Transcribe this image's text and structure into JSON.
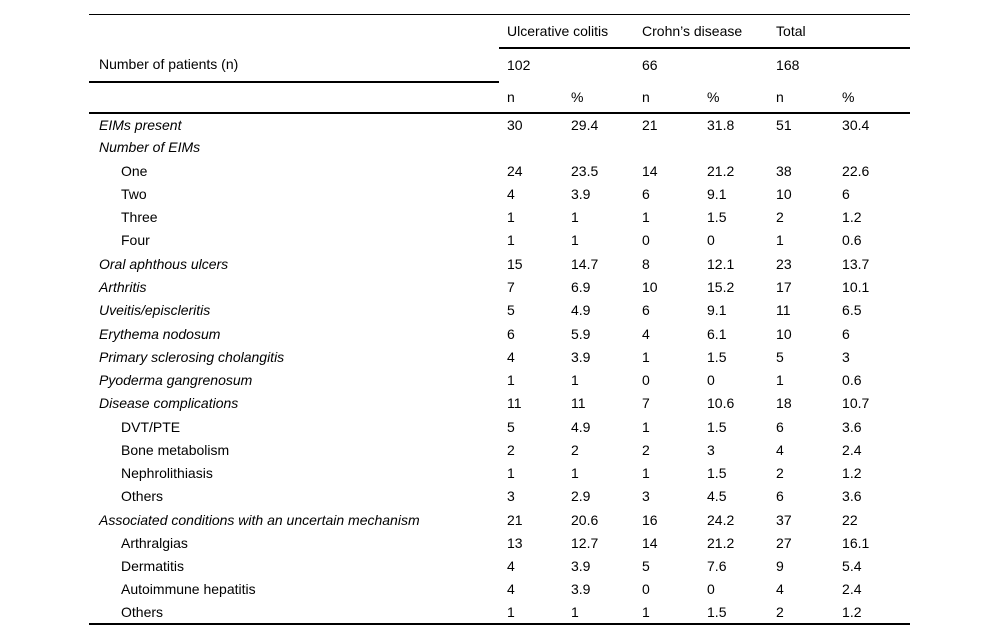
{
  "table": {
    "stub_header": "Number of patients (n)",
    "group_headers": [
      {
        "label": "Ulcerative colitis",
        "n_patients": "102"
      },
      {
        "label": "Crohn’s disease",
        "n_patients": "66"
      },
      {
        "label": "Total",
        "n_patients": "168"
      }
    ],
    "subheaders": [
      "n",
      "%",
      "n",
      "%",
      "n",
      "%"
    ],
    "rows": [
      {
        "label": "EIMs present",
        "italic": true,
        "indent": false,
        "values": [
          "30",
          "29.4",
          "21",
          "31.8",
          "51",
          "30.4"
        ]
      },
      {
        "label": "Number of EIMs",
        "italic": true,
        "indent": false,
        "values": [
          "",
          "",
          "",
          "",
          "",
          ""
        ]
      },
      {
        "label": "One",
        "italic": false,
        "indent": true,
        "values": [
          "24",
          "23.5",
          "14",
          "21.2",
          "38",
          "22.6"
        ]
      },
      {
        "label": "Two",
        "italic": false,
        "indent": true,
        "values": [
          "4",
          "3.9",
          "6",
          "9.1",
          "10",
          "6"
        ]
      },
      {
        "label": "Three",
        "italic": false,
        "indent": true,
        "values": [
          "1",
          "1",
          "1",
          "1.5",
          "2",
          "1.2"
        ]
      },
      {
        "label": "Four",
        "italic": false,
        "indent": true,
        "values": [
          "1",
          "1",
          "0",
          "0",
          "1",
          "0.6"
        ]
      },
      {
        "label": "Oral aphthous ulcers",
        "italic": true,
        "indent": false,
        "values": [
          "15",
          "14.7",
          "8",
          "12.1",
          "23",
          "13.7"
        ]
      },
      {
        "label": "Arthritis",
        "italic": true,
        "indent": false,
        "values": [
          "7",
          "6.9",
          "10",
          "15.2",
          "17",
          "10.1"
        ]
      },
      {
        "label": "Uveitis/episcleritis",
        "italic": true,
        "indent": false,
        "values": [
          "5",
          "4.9",
          "6",
          "9.1",
          "11",
          "6.5"
        ]
      },
      {
        "label": "Erythema nodosum",
        "italic": true,
        "indent": false,
        "values": [
          "6",
          "5.9",
          "4",
          "6.1",
          "10",
          "6"
        ]
      },
      {
        "label": "Primary sclerosing cholangitis",
        "italic": true,
        "indent": false,
        "values": [
          "4",
          "3.9",
          "1",
          "1.5",
          "5",
          "3"
        ]
      },
      {
        "label": "Pyoderma gangrenosum",
        "italic": true,
        "indent": false,
        "values": [
          "1",
          "1",
          "0",
          "0",
          "1",
          "0.6"
        ]
      },
      {
        "label": "Disease complications",
        "italic": true,
        "indent": false,
        "values": [
          "11",
          "11",
          "7",
          "10.6",
          "18",
          "10.7"
        ]
      },
      {
        "label": "DVT/PTE",
        "italic": false,
        "indent": true,
        "values": [
          "5",
          "4.9",
          "1",
          "1.5",
          "6",
          "3.6"
        ]
      },
      {
        "label": "Bone metabolism",
        "italic": false,
        "indent": true,
        "values": [
          "2",
          "2",
          "2",
          "3",
          "4",
          "2.4"
        ]
      },
      {
        "label": "Nephrolithiasis",
        "italic": false,
        "indent": true,
        "values": [
          "1",
          "1",
          "1",
          "1.5",
          "2",
          "1.2"
        ]
      },
      {
        "label": "Others",
        "italic": false,
        "indent": true,
        "values": [
          "3",
          "2.9",
          "3",
          "4.5",
          "6",
          "3.6"
        ]
      },
      {
        "label": "Associated conditions with an uncertain mechanism",
        "italic": true,
        "indent": false,
        "values": [
          "21",
          "20.6",
          "16",
          "24.2",
          "37",
          "22"
        ]
      },
      {
        "label": "Arthralgias",
        "italic": false,
        "indent": true,
        "values": [
          "13",
          "12.7",
          "14",
          "21.2",
          "27",
          "16.1"
        ]
      },
      {
        "label": "Dermatitis",
        "italic": false,
        "indent": true,
        "values": [
          "4",
          "3.9",
          "5",
          "7.6",
          "9",
          "5.4"
        ]
      },
      {
        "label": "Autoimmune hepatitis",
        "italic": false,
        "indent": true,
        "values": [
          "4",
          "3.9",
          "0",
          "0",
          "4",
          "2.4"
        ]
      },
      {
        "label": "Others",
        "italic": false,
        "indent": true,
        "values": [
          "1",
          "1",
          "1",
          "1.5",
          "2",
          "1.2"
        ]
      }
    ]
  }
}
